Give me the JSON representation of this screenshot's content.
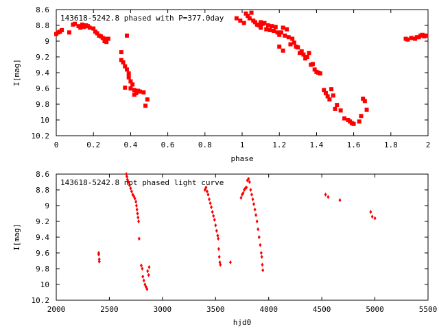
{
  "chart_data": [
    {
      "type": "scatter",
      "title": "143618-5242.8 phased with P=377.0day",
      "xlabel": "phase",
      "ylabel": "I[mag]",
      "xlim": [
        0,
        2
      ],
      "ylim": [
        8.6,
        10.2
      ],
      "y_inverted": true,
      "xticks": [
        0,
        0.2,
        0.4,
        0.6,
        0.8,
        1,
        1.2,
        1.4,
        1.6,
        1.8,
        2
      ],
      "xtick_labels": [
        "0",
        "0.2",
        "0.4",
        "0.6",
        "0.8",
        "1",
        "1.2",
        "1.4",
        "1.6",
        "1.8",
        "2"
      ],
      "yticks": [
        8.6,
        8.8,
        9,
        9.2,
        9.4,
        9.6,
        9.8,
        10,
        10.2
      ],
      "ytick_labels": [
        "8.6",
        "8.8",
        "9",
        "9.2",
        "9.4",
        "9.6",
        "9.8",
        "10",
        "10.2"
      ],
      "grid": false,
      "series": [
        {
          "color": "#ff0000",
          "points": [
            [
              0.0,
              8.91
            ],
            [
              0.01,
              8.89
            ],
            [
              0.02,
              8.88
            ],
            [
              0.03,
              8.86
            ],
            [
              0.07,
              8.89
            ],
            [
              0.09,
              8.79
            ],
            [
              0.1,
              8.78
            ],
            [
              0.12,
              8.81
            ],
            [
              0.13,
              8.83
            ],
            [
              0.14,
              8.79
            ],
            [
              0.15,
              8.82
            ],
            [
              0.16,
              8.8
            ],
            [
              0.17,
              8.81
            ],
            [
              0.18,
              8.83
            ],
            [
              0.2,
              8.84
            ],
            [
              0.21,
              8.88
            ],
            [
              0.22,
              8.9
            ],
            [
              0.23,
              8.93
            ],
            [
              0.24,
              8.94
            ],
            [
              0.25,
              8.96
            ],
            [
              0.26,
              8.97
            ],
            [
              0.27,
              9.01
            ],
            [
              0.28,
              8.97
            ],
            [
              0.26,
              9.0
            ],
            [
              0.35,
              9.14
            ],
            [
              0.35,
              9.24
            ],
            [
              0.36,
              9.27
            ],
            [
              0.37,
              9.32
            ],
            [
              0.38,
              9.36
            ],
            [
              0.39,
              9.41
            ],
            [
              0.39,
              9.46
            ],
            [
              0.37,
              9.59
            ],
            [
              0.4,
              9.51
            ],
            [
              0.41,
              9.55
            ],
            [
              0.42,
              9.62
            ],
            [
              0.42,
              9.68
            ],
            [
              0.43,
              9.66
            ],
            [
              0.44,
              9.63
            ],
            [
              0.45,
              9.64
            ],
            [
              0.47,
              9.65
            ],
            [
              0.48,
              9.82
            ],
            [
              0.49,
              9.74
            ],
            [
              0.38,
              8.93
            ],
            [
              0.4,
              9.6
            ],
            [
              0.97,
              8.71
            ],
            [
              0.99,
              8.74
            ],
            [
              1.01,
              8.77
            ],
            [
              1.02,
              8.65
            ],
            [
              1.03,
              8.68
            ],
            [
              1.04,
              8.71
            ],
            [
              1.05,
              8.64
            ],
            [
              1.06,
              8.74
            ],
            [
              1.07,
              8.76
            ],
            [
              1.08,
              8.79
            ],
            [
              1.09,
              8.8
            ],
            [
              1.1,
              8.83
            ],
            [
              1.12,
              8.77
            ],
            [
              1.13,
              8.85
            ],
            [
              1.15,
              8.86
            ],
            [
              1.17,
              8.87
            ],
            [
              1.19,
              8.89
            ],
            [
              1.2,
              8.92
            ],
            [
              1.21,
              8.89
            ],
            [
              1.23,
              8.93
            ],
            [
              1.25,
              8.95
            ],
            [
              1.27,
              8.97
            ],
            [
              1.28,
              9.02
            ],
            [
              1.3,
              9.08
            ],
            [
              1.32,
              9.13
            ],
            [
              1.33,
              9.17
            ],
            [
              1.35,
              9.2
            ],
            [
              1.36,
              9.15
            ],
            [
              1.38,
              9.29
            ],
            [
              1.4,
              9.39
            ],
            [
              1.41,
              9.4
            ],
            [
              1.42,
              9.41
            ],
            [
              1.44,
              9.62
            ],
            [
              1.45,
              9.66
            ],
            [
              1.46,
              9.7
            ],
            [
              1.47,
              9.74
            ],
            [
              1.48,
              9.61
            ],
            [
              1.49,
              9.69
            ],
            [
              1.5,
              9.86
            ],
            [
              1.51,
              9.81
            ],
            [
              1.53,
              9.88
            ],
            [
              1.55,
              9.98
            ],
            [
              1.57,
              10.0
            ],
            [
              1.58,
              10.02
            ],
            [
              1.59,
              10.04
            ],
            [
              1.6,
              10.05
            ],
            [
              1.63,
              10.02
            ],
            [
              1.64,
              9.95
            ],
            [
              1.65,
              9.73
            ],
            [
              1.66,
              9.76
            ],
            [
              1.67,
              9.87
            ],
            [
              1.2,
              9.07
            ],
            [
              1.22,
              9.12
            ],
            [
              1.26,
              9.04
            ],
            [
              1.29,
              9.07
            ],
            [
              1.31,
              9.15
            ],
            [
              1.34,
              9.22
            ],
            [
              1.37,
              9.3
            ],
            [
              1.39,
              9.36
            ],
            [
              1.1,
              8.76
            ],
            [
              1.11,
              8.78
            ],
            [
              1.14,
              8.8
            ],
            [
              1.16,
              8.81
            ],
            [
              1.18,
              8.82
            ],
            [
              1.22,
              8.83
            ],
            [
              1.24,
              8.85
            ],
            [
              1.88,
              8.97
            ],
            [
              1.89,
              8.98
            ],
            [
              1.91,
              8.96
            ],
            [
              1.93,
              8.97
            ],
            [
              1.94,
              8.95
            ],
            [
              1.95,
              8.95
            ],
            [
              1.96,
              8.93
            ],
            [
              1.97,
              8.92
            ],
            [
              1.98,
              8.94
            ],
            [
              1.99,
              8.93
            ]
          ]
        }
      ]
    },
    {
      "type": "scatter",
      "title": "143618-5242.8 not phased light curve",
      "xlabel": "hjd0",
      "ylabel": "I[mag]",
      "xlim": [
        2000,
        5500
      ],
      "ylim": [
        8.6,
        10.2
      ],
      "y_inverted": true,
      "xticks": [
        2000,
        2500,
        3000,
        3500,
        4000,
        4500,
        5000,
        5500
      ],
      "xtick_labels": [
        "2000",
        "2500",
        "3000",
        "3500",
        "4000",
        "4500",
        "5000",
        "5500"
      ],
      "yticks": [
        8.6,
        8.8,
        9,
        9.2,
        9.4,
        9.6,
        9.8,
        10,
        10.2
      ],
      "ytick_labels": [
        "8.6",
        "8.8",
        "9",
        "9.2",
        "9.4",
        "9.6",
        "9.8",
        "10",
        "10.2"
      ],
      "grid": false,
      "series": [
        {
          "color": "#ff0000",
          "points": [
            [
              2400,
              9.6
            ],
            [
              2400,
              9.62
            ],
            [
              2405,
              9.68
            ],
            [
              2405,
              9.71
            ],
            [
              2660,
              8.6
            ],
            [
              2665,
              8.63
            ],
            [
              2670,
              8.67
            ],
            [
              2680,
              8.7
            ],
            [
              2690,
              8.74
            ],
            [
              2700,
              8.78
            ],
            [
              2710,
              8.82
            ],
            [
              2720,
              8.86
            ],
            [
              2730,
              8.88
            ],
            [
              2740,
              8.91
            ],
            [
              2750,
              8.95
            ],
            [
              2755,
              9.0
            ],
            [
              2760,
              9.05
            ],
            [
              2765,
              9.1
            ],
            [
              2770,
              9.15
            ],
            [
              2775,
              9.2
            ],
            [
              2780,
              9.42
            ],
            [
              2800,
              9.76
            ],
            [
              2810,
              9.8
            ],
            [
              2815,
              9.9
            ],
            [
              2825,
              9.95
            ],
            [
              2835,
              10.0
            ],
            [
              2845,
              10.03
            ],
            [
              2855,
              10.06
            ],
            [
              2860,
              9.83
            ],
            [
              2870,
              9.88
            ],
            [
              2875,
              9.78
            ],
            [
              3400,
              8.8
            ],
            [
              3410,
              8.77
            ],
            [
              3420,
              8.82
            ],
            [
              3430,
              8.86
            ],
            [
              3440,
              8.92
            ],
            [
              3450,
              8.97
            ],
            [
              3460,
              9.02
            ],
            [
              3470,
              9.08
            ],
            [
              3480,
              9.13
            ],
            [
              3490,
              9.18
            ],
            [
              3500,
              9.25
            ],
            [
              3510,
              9.32
            ],
            [
              3520,
              9.38
            ],
            [
              3525,
              9.42
            ],
            [
              3530,
              9.55
            ],
            [
              3535,
              9.65
            ],
            [
              3540,
              9.72
            ],
            [
              3545,
              9.75
            ],
            [
              3640,
              9.72
            ],
            [
              3740,
              8.9
            ],
            [
              3750,
              8.86
            ],
            [
              3760,
              8.84
            ],
            [
              3770,
              8.8
            ],
            [
              3780,
              8.78
            ],
            [
              3790,
              8.77
            ],
            [
              3800,
              8.68
            ],
            [
              3810,
              8.66
            ],
            [
              3820,
              8.7
            ],
            [
              3830,
              8.8
            ],
            [
              3840,
              8.86
            ],
            [
              3850,
              8.92
            ],
            [
              3860,
              8.98
            ],
            [
              3870,
              9.05
            ],
            [
              3880,
              9.12
            ],
            [
              3890,
              9.2
            ],
            [
              3900,
              9.3
            ],
            [
              3910,
              9.4
            ],
            [
              3920,
              9.5
            ],
            [
              3930,
              9.6
            ],
            [
              3935,
              9.65
            ],
            [
              3940,
              9.75
            ],
            [
              3945,
              9.82
            ],
            [
              4535,
              8.86
            ],
            [
              4560,
              8.89
            ],
            [
              4670,
              8.93
            ],
            [
              4960,
              9.08
            ],
            [
              4975,
              9.14
            ],
            [
              5000,
              9.16
            ]
          ]
        }
      ]
    }
  ]
}
